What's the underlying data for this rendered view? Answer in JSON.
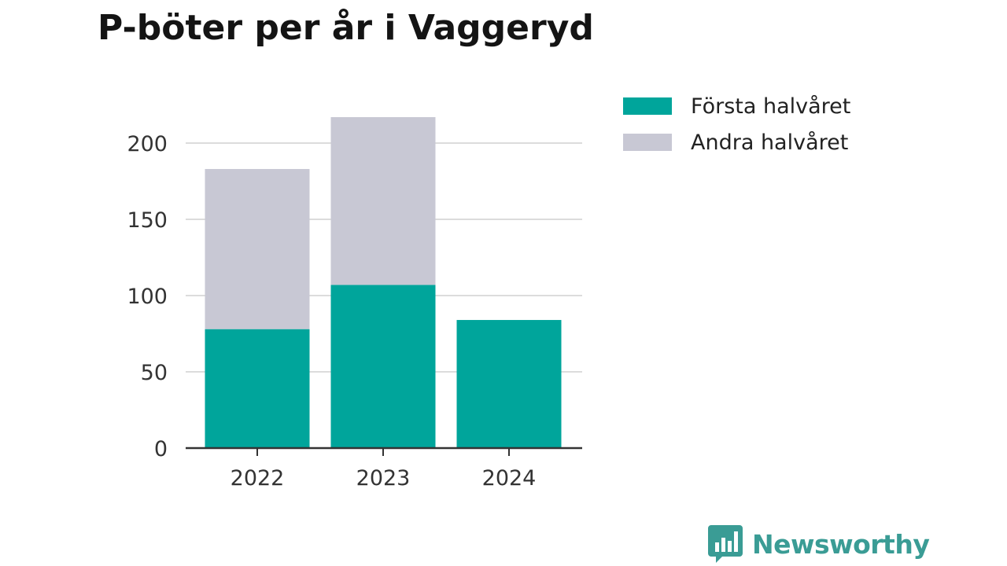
{
  "colors": {
    "first_half": "#00a59b",
    "second_half": "#c8c8d4",
    "grid": "#dcdcdc",
    "axis": "#333333",
    "brand": "#3a9c95"
  },
  "brand": {
    "name": "Newsworthy",
    "icon": "bar-chart-speech-bubble-icon"
  },
  "chart_data": {
    "type": "bar",
    "stacked": true,
    "title": "P-böter per år i Vaggeryd",
    "xlabel": "",
    "ylabel": "",
    "categories": [
      "2022",
      "2023",
      "2024"
    ],
    "series": [
      {
        "name": "Första halvåret",
        "values": [
          78,
          107,
          84
        ]
      },
      {
        "name": "Andra halvåret",
        "values": [
          105,
          110,
          0
        ]
      }
    ],
    "ylim": [
      0,
      220
    ],
    "yticks": [
      0,
      50,
      100,
      150,
      200
    ],
    "grid": true,
    "legend_position": "right"
  }
}
